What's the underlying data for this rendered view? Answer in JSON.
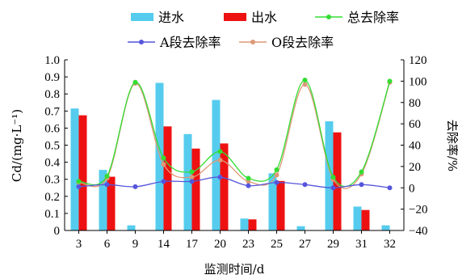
{
  "chart_data": {
    "type": "bar",
    "categories": [
      "3",
      "6",
      "9",
      "14",
      "17",
      "20",
      "23",
      "25",
      "27",
      "29",
      "31",
      "32"
    ],
    "xlabel": "监测时间/d",
    "ylabel": "Cd/(mg·L⁻¹)",
    "y2label": "去除率/%",
    "ylim": [
      0,
      1.0
    ],
    "y2lim": [
      -40,
      120
    ],
    "yticks": [
      "0",
      "0.1",
      "0.2",
      "0.3",
      "0.4",
      "0.5",
      "0.6",
      "0.7",
      "0.8",
      "0.9",
      "1.0"
    ],
    "y2ticks": [
      "−40",
      "−20",
      "0",
      "20",
      "40",
      "60",
      "80",
      "100",
      "120"
    ],
    "legend_position": "top",
    "bar_series": [
      {
        "name": "进水",
        "color": "#55ccee",
        "values": [
          0.715,
          0.355,
          0.03,
          0.865,
          0.565,
          0.765,
          0.07,
          0.335,
          0.025,
          0.64,
          0.14,
          0.03
        ]
      },
      {
        "name": "出水",
        "color": "#ee1111",
        "values": [
          0.675,
          0.315,
          null,
          0.61,
          0.48,
          0.51,
          0.065,
          0.29,
          null,
          0.575,
          0.12,
          null
        ]
      }
    ],
    "line_series": [
      {
        "name": "总去除率",
        "color": "#33dd33",
        "marker": "circle",
        "values": [
          6,
          11,
          99,
          28,
          15,
          34,
          9,
          17,
          101,
          10,
          15,
          100
        ]
      },
      {
        "name": "A段去除率",
        "color": "#5555dd",
        "marker": "circle",
        "values": [
          1,
          3,
          1,
          6,
          6,
          10,
          2,
          5,
          3,
          0,
          3,
          0
        ]
      },
      {
        "name": "O段去除率",
        "color": "#dd9977",
        "marker": "circle",
        "values": [
          5,
          9,
          98,
          22,
          10,
          26,
          6,
          12,
          97,
          8,
          13,
          99
        ]
      }
    ]
  }
}
